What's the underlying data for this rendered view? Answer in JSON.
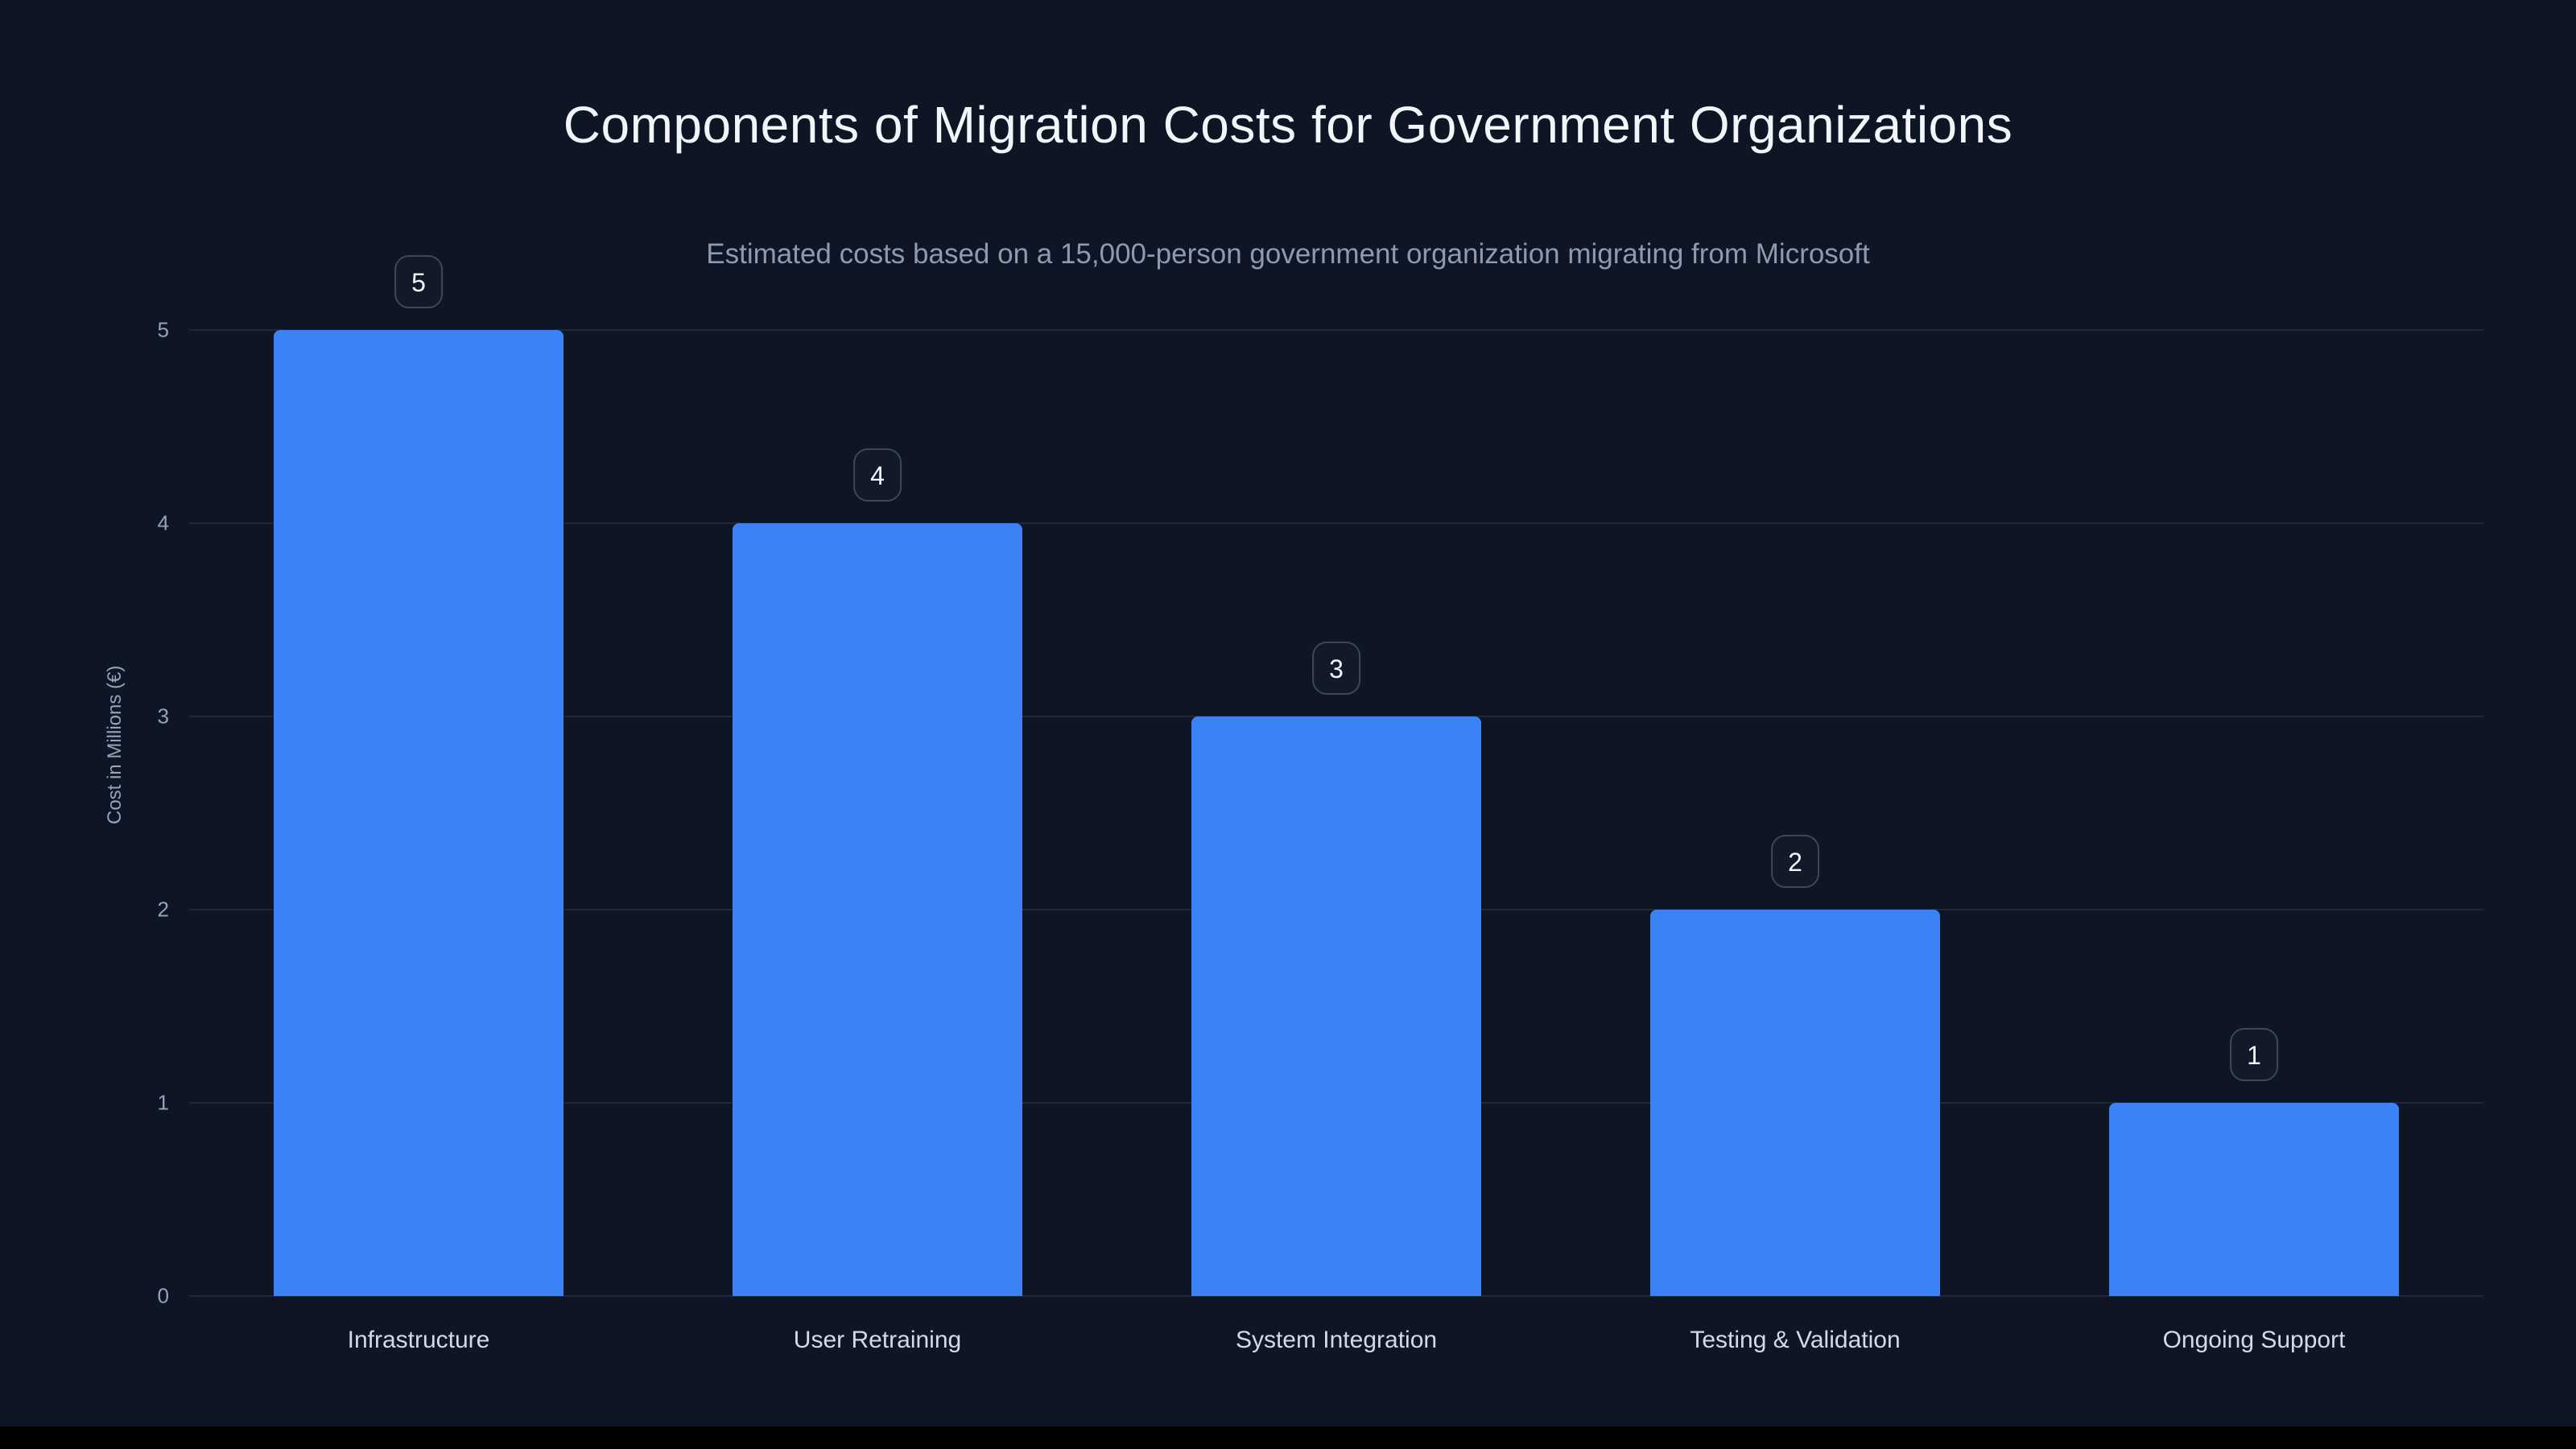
{
  "page": {
    "title": "Components of Migration Costs for Government Organizations",
    "subtitle": "Estimated costs based on a 15,000-person government organization migrating from Microsoft"
  },
  "chart_data": {
    "type": "bar",
    "title": "Components of Migration Costs for Government Organizations",
    "subtitle": "Estimated costs based on a 15,000-person government organization migrating from Microsoft",
    "categories": [
      "Infrastructure",
      "User Retraining",
      "System Integration",
      "Testing & Validation",
      "Ongoing Support"
    ],
    "values": [
      5,
      4,
      3,
      2,
      1
    ],
    "value_labels": [
      "5",
      "4",
      "3",
      "2",
      "1"
    ],
    "xlabel": "",
    "ylabel": "Cost in Millions (€)",
    "ylim": [
      0,
      5
    ],
    "yticks": [
      0,
      1,
      2,
      3,
      4,
      5
    ],
    "grid": true,
    "legend": "none",
    "colors": {
      "bar": "#3b82f6",
      "background": "#0e1626",
      "title_text": "#f2f5f9",
      "muted_text": "#94a3b8",
      "category_text": "#d3dae4",
      "gridline": "rgba(148,163,184,0.13)",
      "badge_border": "#3c4759"
    }
  }
}
